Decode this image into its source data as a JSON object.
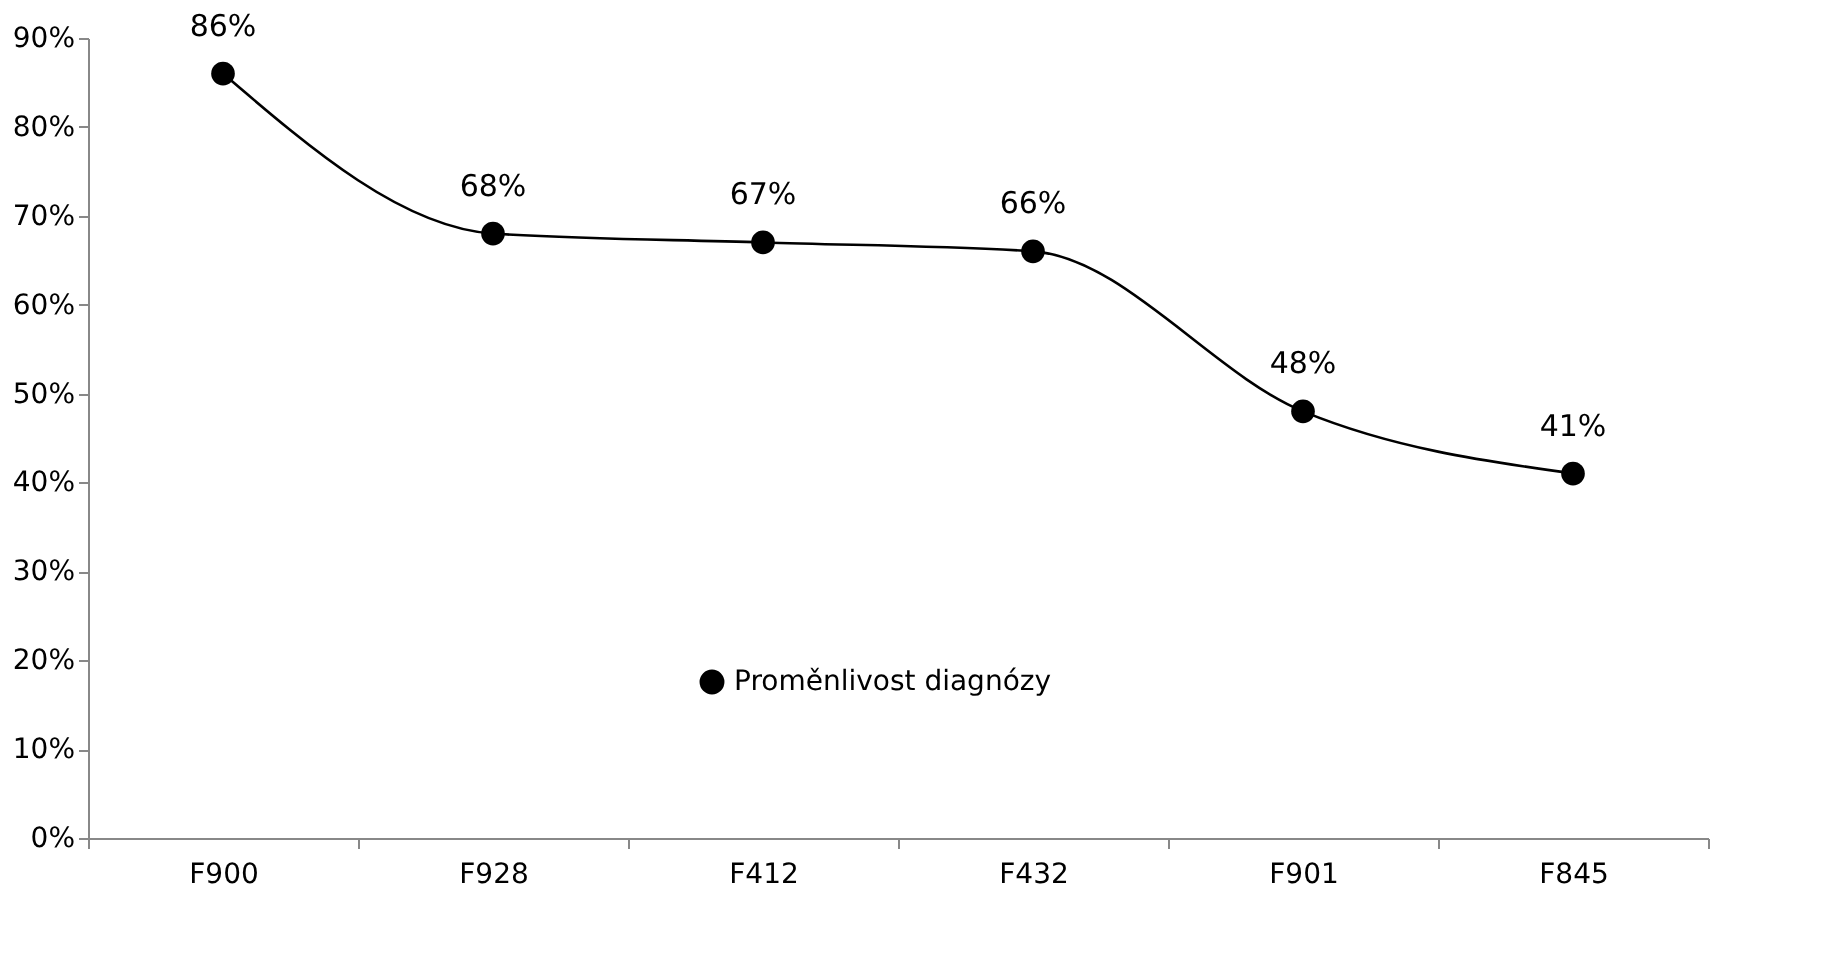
{
  "chart_data": {
    "type": "line",
    "categories": [
      "F900",
      "F928",
      "F412",
      "F432",
      "F901",
      "F845"
    ],
    "series": [
      {
        "name": "Proměnlivost diagnózy",
        "color": "#000000",
        "values": [
          86,
          68,
          67,
          66,
          48,
          41
        ],
        "value_labels": [
          "86%",
          "68%",
          "67%",
          "66%",
          "48%",
          "41%"
        ]
      }
    ],
    "ylim": [
      0,
      90
    ],
    "yticks": [
      {
        "value": 0,
        "label": "0%"
      },
      {
        "value": 10,
        "label": "10%"
      },
      {
        "value": 20,
        "label": "20%"
      },
      {
        "value": 30,
        "label": "30%"
      },
      {
        "value": 40,
        "label": "40%"
      },
      {
        "value": 50,
        "label": "50%"
      },
      {
        "value": 60,
        "label": "60%"
      },
      {
        "value": 70,
        "label": "70%"
      },
      {
        "value": 80,
        "label": "80%"
      },
      {
        "value": 90,
        "label": "90%"
      }
    ],
    "grid": false,
    "legend": "bottom",
    "marker": "circle",
    "line_style": "solid"
  }
}
